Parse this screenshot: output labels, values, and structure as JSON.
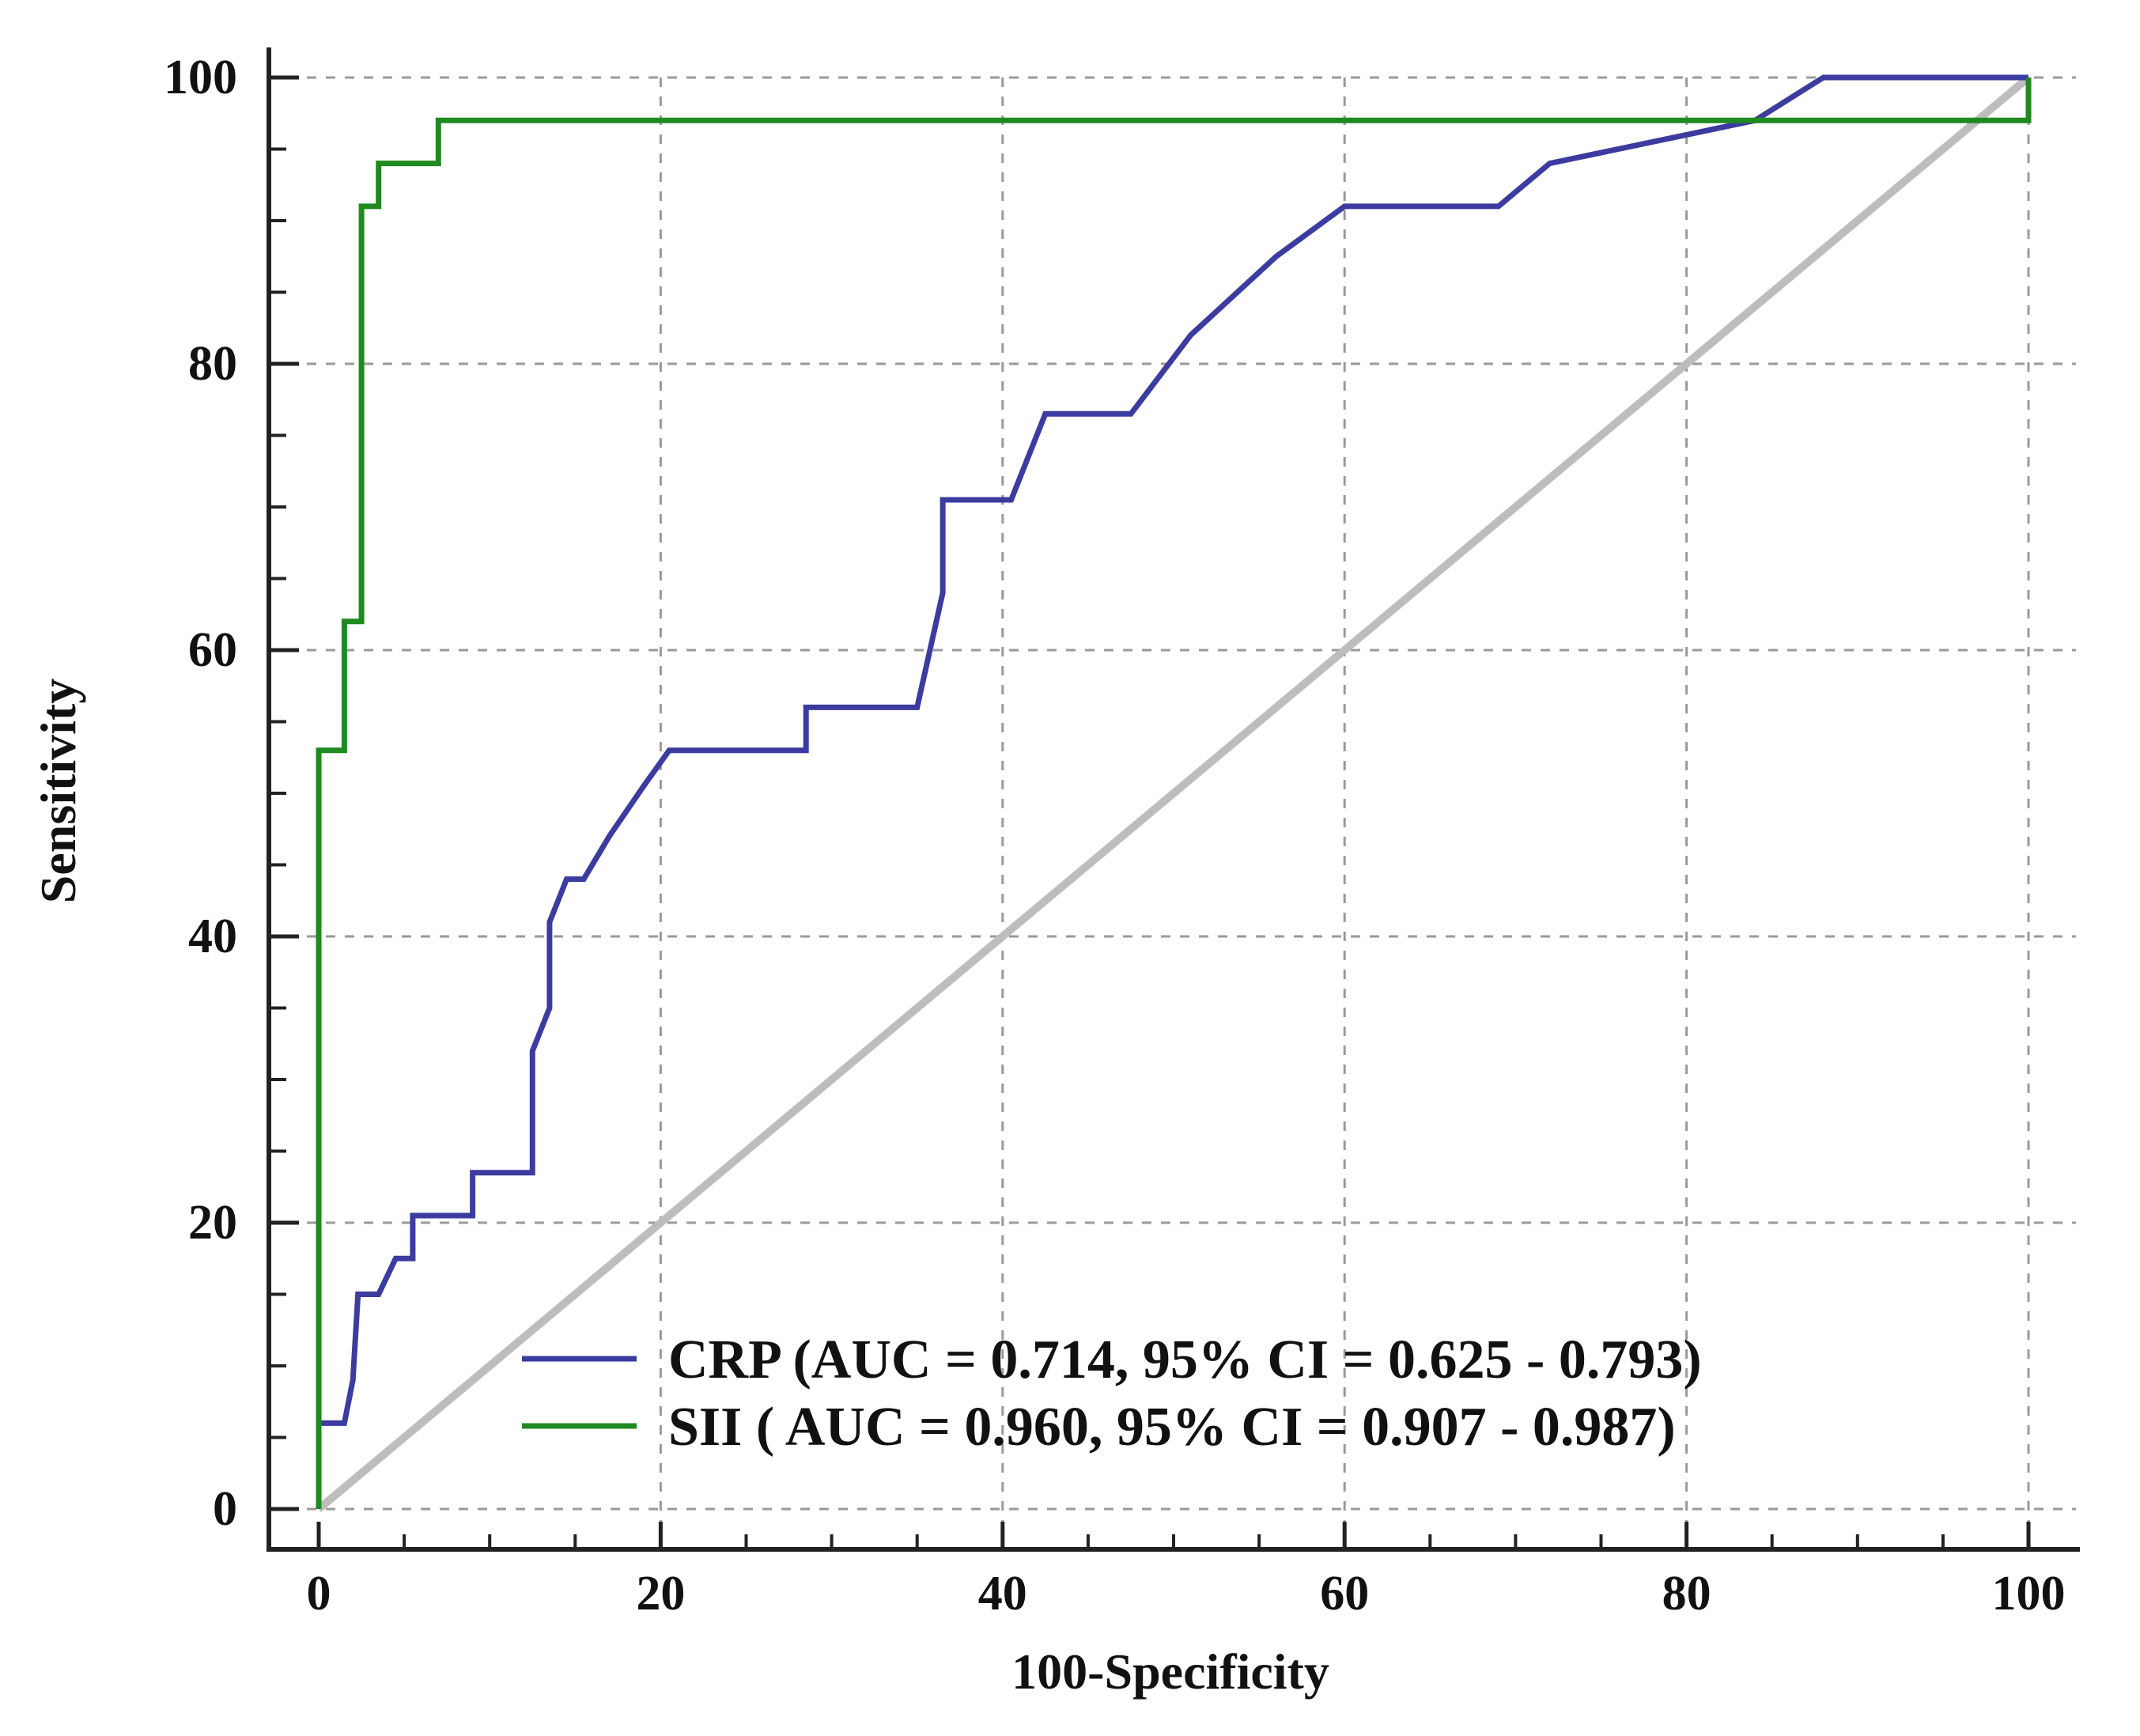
{
  "chart_data": {
    "type": "line",
    "xlabel": "100-Specificity",
    "ylabel": "Sensitivity",
    "xlim": [
      0,
      100
    ],
    "ylim": [
      0,
      100
    ],
    "x_ticks": [
      "0",
      "20",
      "40",
      "60",
      "80",
      "100"
    ],
    "y_ticks": [
      "0",
      "20",
      "40",
      "60",
      "80",
      "100"
    ],
    "grid": true,
    "legend_position": "bottom-right",
    "series": [
      {
        "name": "CRP (AUC = 0.714, 95% CI = 0.625 - 0.793)",
        "color": "#3c3ca0",
        "points": [
          [
            0,
            0
          ],
          [
            0,
            6
          ],
          [
            1.5,
            6
          ],
          [
            2,
            9
          ],
          [
            2.3,
            15
          ],
          [
            3.5,
            15
          ],
          [
            4.5,
            17.5
          ],
          [
            5.5,
            17.5
          ],
          [
            5.5,
            20.5
          ],
          [
            9,
            20.5
          ],
          [
            9,
            23.5
          ],
          [
            12.5,
            23.5
          ],
          [
            12.5,
            32
          ],
          [
            13.5,
            35
          ],
          [
            13.5,
            41
          ],
          [
            14.5,
            44
          ],
          [
            15.5,
            44
          ],
          [
            17,
            47
          ],
          [
            19,
            50.5
          ],
          [
            20.5,
            53
          ],
          [
            28.5,
            53
          ],
          [
            28.5,
            56
          ],
          [
            35,
            56
          ],
          [
            36.5,
            64
          ],
          [
            36.5,
            70.5
          ],
          [
            40.5,
            70.5
          ],
          [
            42.5,
            76.5
          ],
          [
            47.5,
            76.5
          ],
          [
            51,
            82
          ],
          [
            56,
            87.5
          ],
          [
            60,
            91
          ],
          [
            69,
            91
          ],
          [
            72,
            94
          ],
          [
            80,
            96
          ],
          [
            84,
            97
          ],
          [
            88,
            100
          ],
          [
            100,
            100
          ]
        ]
      },
      {
        "name": "SII ( AUC = 0.960, 95% CI = 0.907 - 0.987)",
        "color": "#1f8a1f",
        "points": [
          [
            0,
            0
          ],
          [
            0,
            53
          ],
          [
            1.5,
            53
          ],
          [
            1.5,
            62
          ],
          [
            2.5,
            62
          ],
          [
            2.5,
            91
          ],
          [
            3.5,
            91
          ],
          [
            3.5,
            94
          ],
          [
            7,
            94
          ],
          [
            7,
            97
          ],
          [
            100,
            97
          ],
          [
            100,
            100
          ]
        ]
      },
      {
        "name": "",
        "color": "#bdbdbd",
        "points": [
          [
            0,
            0
          ],
          [
            100,
            100
          ]
        ]
      }
    ]
  }
}
